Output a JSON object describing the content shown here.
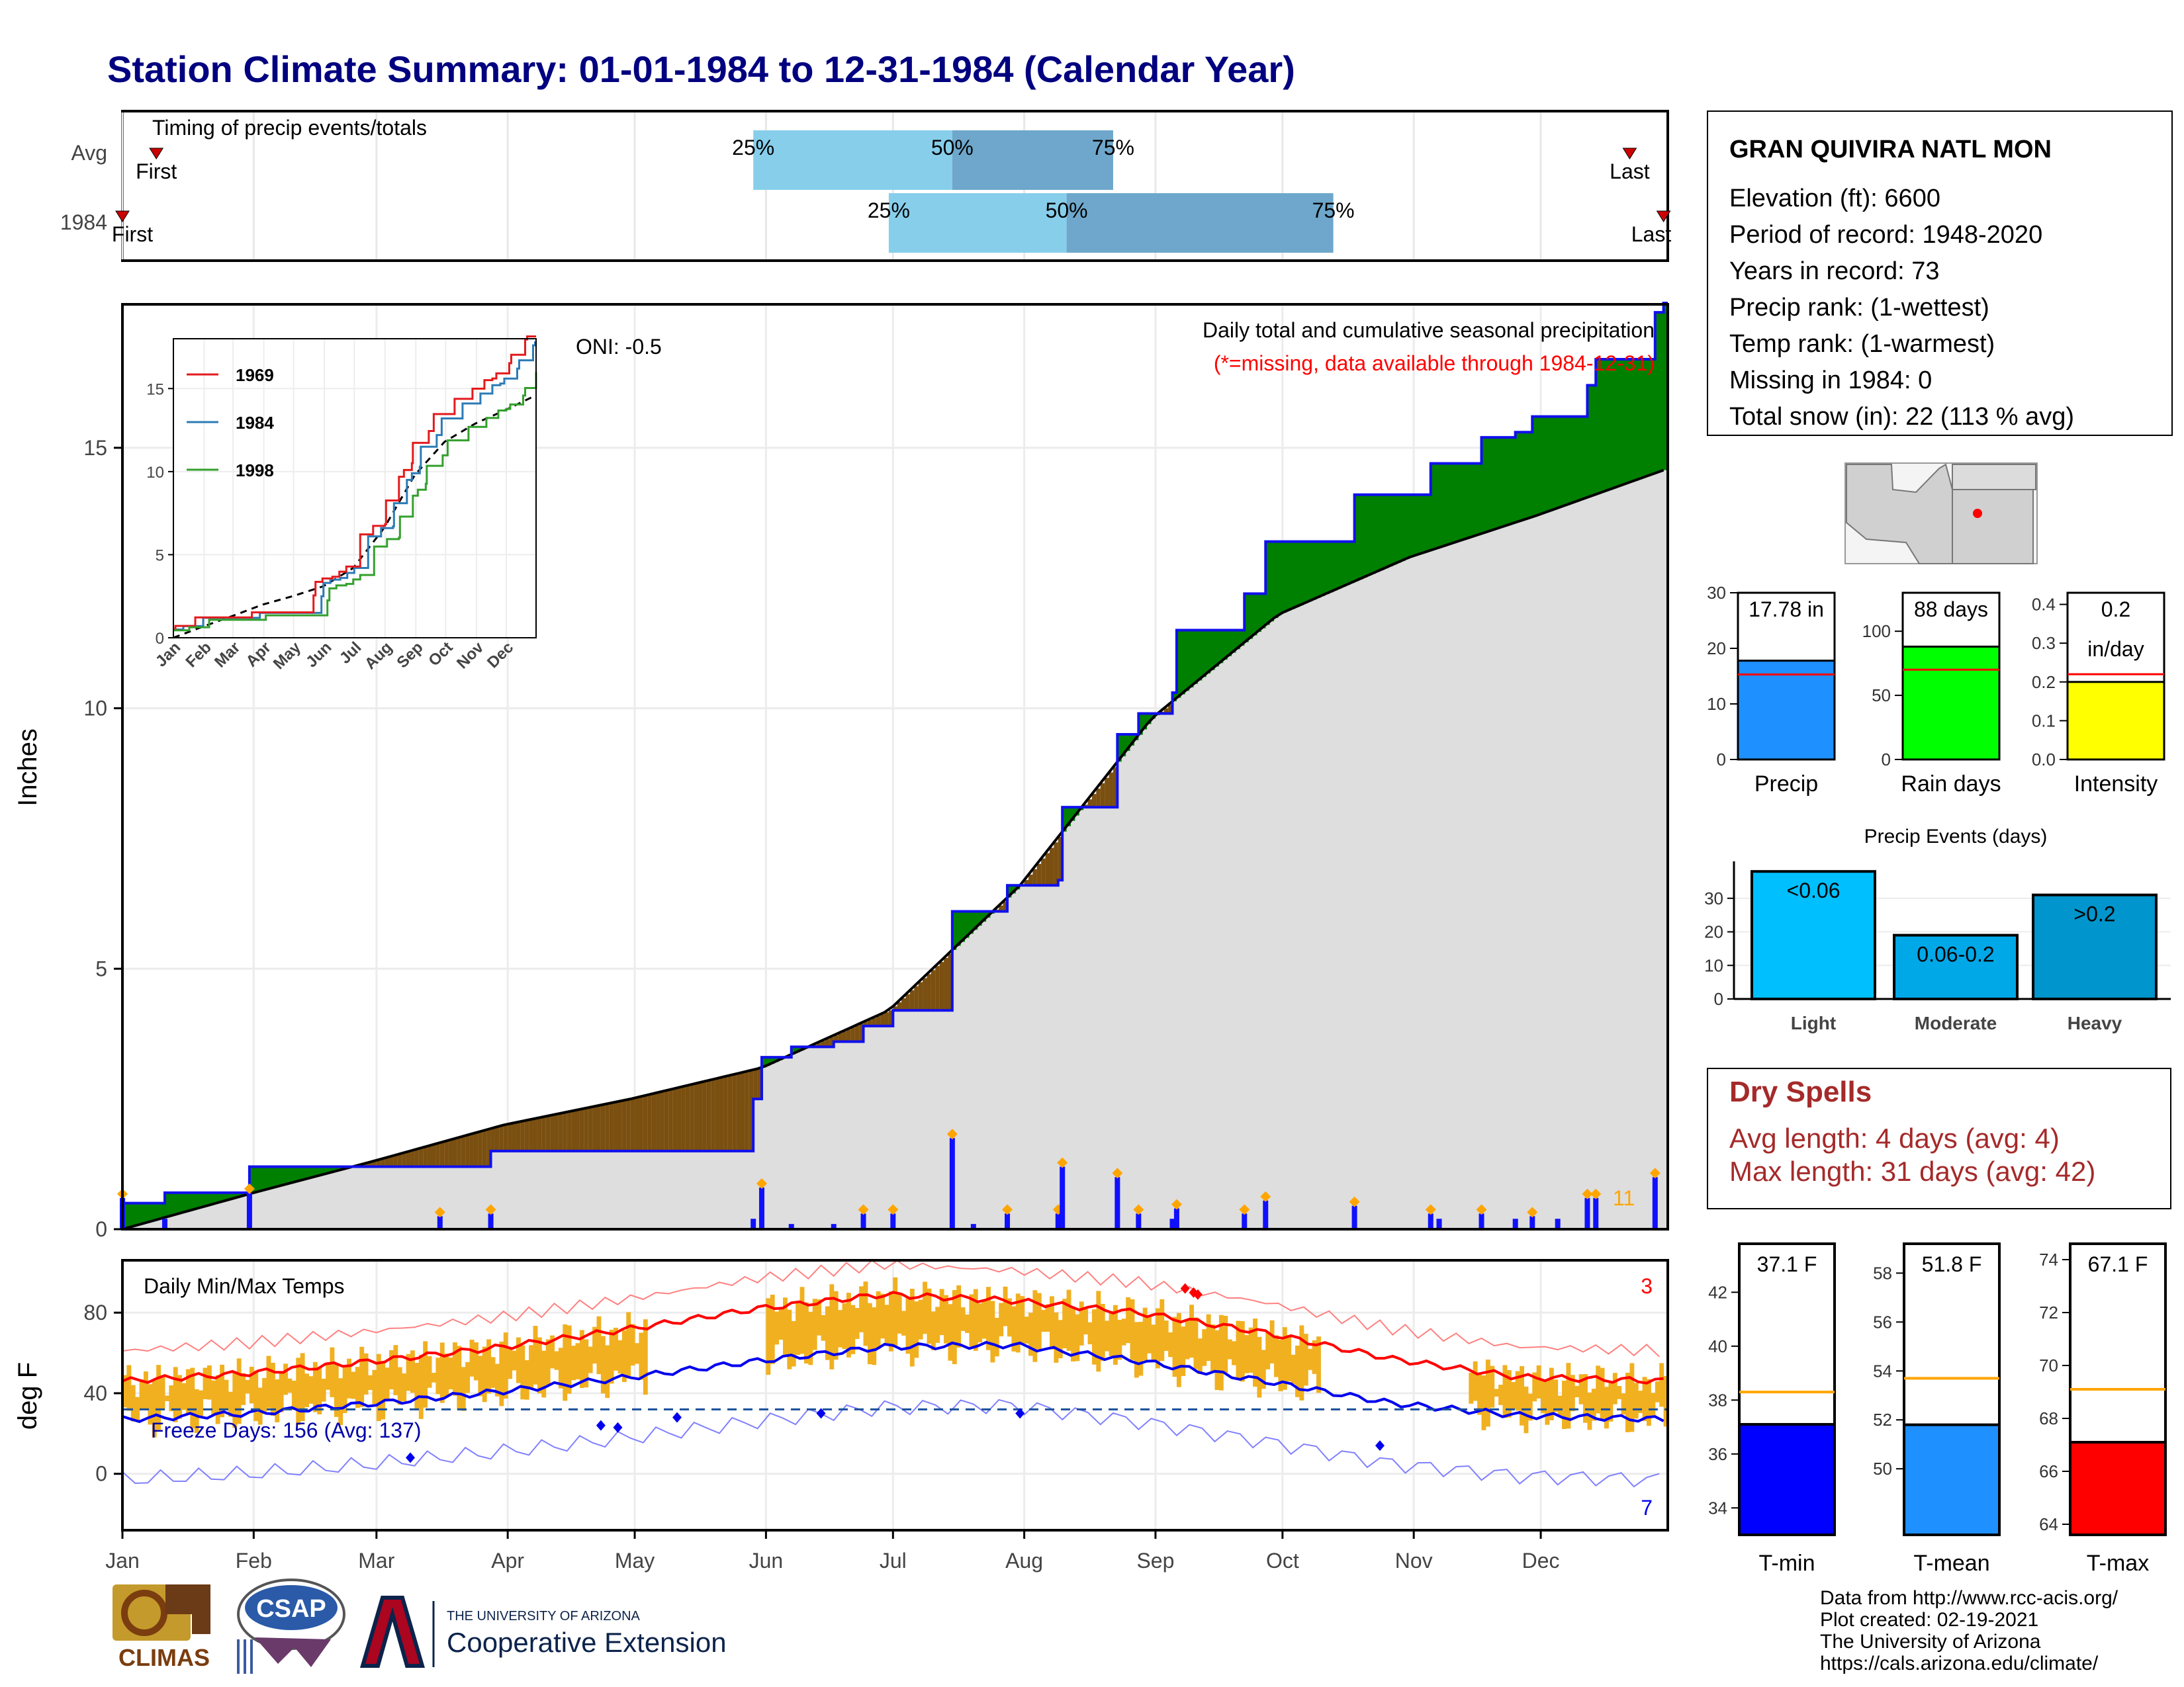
{
  "title": "Station Climate Summary: 01-01-1984 to 12-31-1984 (Calendar Year)",
  "colors": {
    "title": "#000080",
    "surplus": "#008000",
    "deficit": "#7a4f10",
    "cum_line": "#1010ee",
    "normal_fill": "#dedede",
    "quartile_light": "#87ceeb",
    "quartile_dark": "#6ea7cb",
    "tmax_avg": "#ff0000",
    "tmin_avg": "#0000ee",
    "range_bar": "#f0b020",
    "precip_bar": "#1e90ff",
    "raindays_bar": "#00ff00",
    "intensity_bar": "#ffff00",
    "light_bar": "#00bfff",
    "moderate_bar": "#00a8e8",
    "heavy_bar": "#0095cc",
    "tmin_bar": "#0000ff",
    "tmean_bar": "#1e90ff",
    "tmax_bar": "#ff0000",
    "dry_spells": "#a52a2a",
    "avg_line": "#ffa500"
  },
  "timing_panel": {
    "label": "Timing of precip events/totals",
    "rows": [
      {
        "label": "Avg",
        "first_label": "First",
        "last_label": "Last",
        "first_doy": 8,
        "last_doy": 356,
        "q25_doy": 149,
        "q50_doy": 196,
        "q75_doy": 234,
        "q25_label": "25%",
        "q50_label": "50%",
        "q75_label": "75%"
      },
      {
        "label": "1984",
        "first_label": "First",
        "last_label": "Last",
        "first_doy": 0,
        "last_doy": 364,
        "q25_doy": 181,
        "q50_doy": 223,
        "q75_doy": 286,
        "q25_label": "25%",
        "q50_label": "50%",
        "q75_label": "75%"
      }
    ]
  },
  "precip_panel": {
    "ylabel": "Inches",
    "yticks": [
      0,
      5,
      10,
      15
    ],
    "ymax": 17.5,
    "caption": "Daily total and cumulative seasonal precipitation",
    "missing_note": "(*=missing, data available through 1984-12-31)",
    "oni": "ONI: -0.5",
    "count_label": "11"
  },
  "inset": {
    "legend": [
      "1969",
      "1984",
      "1998"
    ],
    "yticks": [
      0,
      5,
      10,
      15
    ],
    "months": [
      "Jan",
      "Feb",
      "Mar",
      "Apr",
      "May",
      "Jun",
      "Jul",
      "Aug",
      "Sep",
      "Oct",
      "Nov",
      "Dec"
    ]
  },
  "temp_panel": {
    "ylabel": "deg F",
    "label": "Daily Min/Max Temps",
    "freeze": "Freeze Days: 156 (Avg: 137)",
    "hot_count": "3",
    "cold_count": "7",
    "yticks": [
      0,
      40,
      80
    ]
  },
  "months": [
    "Jan",
    "Feb",
    "Mar",
    "Apr",
    "May",
    "Jun",
    "Jul",
    "Aug",
    "Sep",
    "Oct",
    "Nov",
    "Dec"
  ],
  "station": {
    "name": "GRAN QUIVIRA NATL MON",
    "lines": [
      "Elevation (ft): 6600",
      "Period of record: 1948-2020",
      "Years in record: 73",
      "Precip rank:  (1-wettest)",
      "Temp rank:  (1-warmest)",
      "Missing in 1984: 0",
      "Total snow (in): 22 (113 % avg)"
    ]
  },
  "precip_bars": [
    {
      "label": "Precip",
      "value": 17.78,
      "avg": 15.3,
      "ymax": 30,
      "yticks": [
        0,
        10,
        20,
        30
      ],
      "value_label": "17.78 in",
      "color": "#1e90ff"
    },
    {
      "label": "Rain days",
      "value": 88,
      "avg": 70,
      "ymax": 130,
      "yticks": [
        0,
        50,
        100
      ],
      "value_label": "88 days",
      "color": "#00ff00"
    },
    {
      "label": "Intensity",
      "value": 0.2,
      "avg": 0.22,
      "ymax": 0.43,
      "yticks": [
        0.0,
        0.1,
        0.2,
        0.3,
        0.4
      ],
      "value_label": "0.2\nin/day",
      "color": "#ffff00"
    }
  ],
  "events": {
    "title": "Precip Events (days)",
    "yticks": [
      0,
      10,
      20,
      30
    ],
    "bars": [
      {
        "category": "Light",
        "range_label": "<0.06",
        "value": 38
      },
      {
        "category": "Moderate",
        "range_label": "0.06-0.2",
        "value": 19
      },
      {
        "category": "Heavy",
        "range_label": ">0.2",
        "value": 31
      }
    ]
  },
  "dry_spells": {
    "title": "Dry Spells",
    "avg_line": "Avg length: 4 days (avg: 4)",
    "max_line": "Max length: 31 days (avg: 42)"
  },
  "temp_bars": [
    {
      "label": "T-min",
      "value": 37.1,
      "value_label": "37.1 F",
      "avg": 38.3,
      "ymin": 33,
      "ymax": 43.8,
      "yticks": [
        34,
        36,
        38,
        40,
        42
      ]
    },
    {
      "label": "T-mean",
      "value": 51.8,
      "value_label": "51.8 F",
      "avg": 53.7,
      "ymin": 47.3,
      "ymax": 59.2,
      "yticks": [
        50,
        52,
        54,
        56,
        58
      ]
    },
    {
      "label": "T-max",
      "value": 67.1,
      "value_label": "67.1 F",
      "avg": 69.1,
      "ymin": 63.6,
      "ymax": 74.6,
      "yticks": [
        64,
        66,
        68,
        70,
        72,
        74
      ]
    }
  ],
  "footer": {
    "lines": [
      "Data from http://www.rcc-acis.org/",
      "Plot created: 02-19-2021",
      "The University of Arizona",
      "https://cals.arizona.edu/climate/"
    ],
    "climas": "CLIMAS",
    "csap": "CSAP",
    "ua_small": "THE UNIVERSITY OF ARIZONA",
    "ua_big": "Cooperative Extension"
  },
  "chart_data": {
    "type": "area",
    "title": "Daily total and cumulative seasonal precipitation",
    "ylabel": "Inches",
    "ylim": [
      0,
      17.5
    ],
    "cumulative_1984": {
      "doy": [
        0,
        10,
        30,
        75,
        87,
        132,
        149,
        151,
        158,
        168,
        175,
        182,
        196,
        201,
        209,
        213,
        221,
        222,
        235,
        240,
        248,
        249,
        265,
        270,
        291,
        309,
        311,
        321,
        329,
        333,
        339,
        346,
        348,
        362,
        363,
        364
      ],
      "inches": [
        0.5,
        0.7,
        1.2,
        1.2,
        1.5,
        1.5,
        2.5,
        3.3,
        3.5,
        3.6,
        3.9,
        4.2,
        6.1,
        6.1,
        6.6,
        6.6,
        6.7,
        8.1,
        9.5,
        9.9,
        10.3,
        11.5,
        12.2,
        13.2,
        14.1,
        14.7,
        14.7,
        15.2,
        15.3,
        15.6,
        15.6,
        16.2,
        16.7,
        17.6,
        17.6,
        17.78
      ]
    },
    "normal_cumulative": {
      "doy": [
        0,
        31,
        59,
        90,
        120,
        151,
        181,
        212,
        243,
        273,
        304,
        334,
        365
      ],
      "inches": [
        0.0,
        0.7,
        1.3,
        2.0,
        2.5,
        3.1,
        4.2,
        6.6,
        9.8,
        11.8,
        12.9,
        13.7,
        14.6
      ]
    },
    "daily_precip_1984": {
      "doy": [
        0,
        10,
        30,
        75,
        87,
        149,
        151,
        158,
        168,
        175,
        182,
        196,
        201,
        209,
        221,
        222,
        235,
        240,
        248,
        249,
        265,
        270,
        291,
        309,
        311,
        321,
        329,
        333,
        339,
        346,
        348,
        362
      ],
      "inches": [
        0.6,
        0.2,
        0.7,
        0.25,
        0.3,
        0.2,
        0.8,
        0.1,
        0.1,
        0.3,
        0.3,
        1.75,
        0.1,
        0.3,
        0.3,
        1.2,
        1.0,
        0.3,
        0.2,
        0.4,
        0.3,
        0.55,
        0.45,
        0.3,
        0.2,
        0.3,
        0.2,
        0.25,
        0.2,
        0.6,
        0.6,
        1.0
      ]
    },
    "temps_avg": {
      "doy": [
        0,
        30,
        60,
        90,
        120,
        150,
        180,
        210,
        240,
        270,
        300,
        330,
        365
      ],
      "tmax": [
        46,
        50,
        56,
        63,
        72,
        82,
        89,
        86,
        80,
        70,
        57,
        48,
        46
      ],
      "tmin": [
        19,
        22,
        27,
        33,
        40,
        48,
        55,
        56,
        48,
        38,
        27,
        21,
        19
      ]
    },
    "freeze_line_f": 32
  }
}
